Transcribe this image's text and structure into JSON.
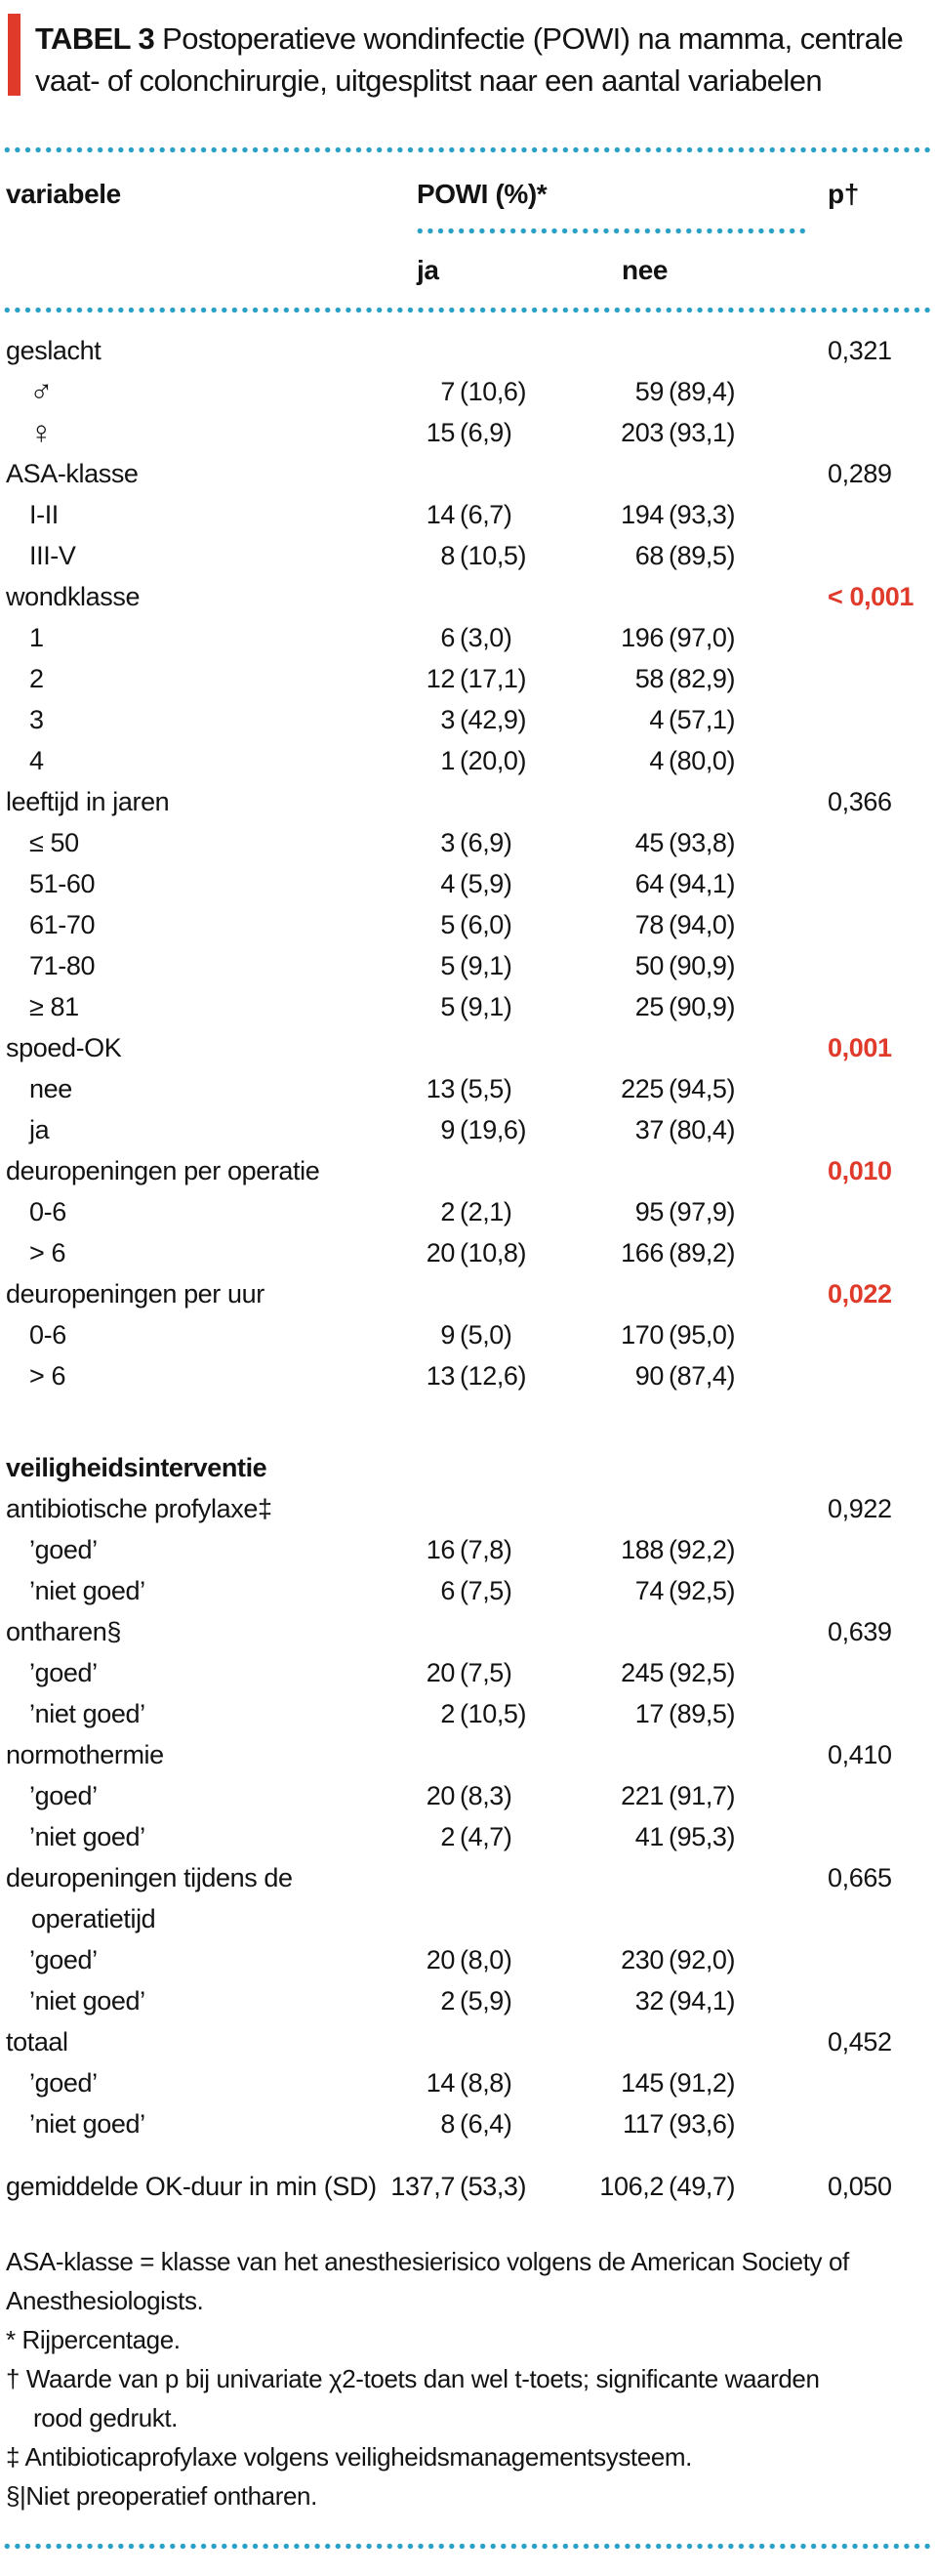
{
  "colors": {
    "accent_red": "#e03a2b",
    "dot_blue": "#29a0c6",
    "text": "#131313"
  },
  "title": {
    "label": "TABEL 3",
    "line1": "Postoperatieve wondinfectie (POWI) na mamma, centrale",
    "line2": "vaat- of colonchirurgie, uitgesplitst naar een aantal variabelen"
  },
  "table": {
    "col_variable": "variabele",
    "col_powi": "POWI (%)*",
    "col_p": "p†",
    "sub_ja": "ja",
    "sub_nee": "nee",
    "rows": [
      {
        "label": "geslacht",
        "p": "0,321"
      },
      {
        "label": "♂",
        "indent": 1,
        "big": true,
        "ja_n": "7",
        "ja_p": "(10,6)",
        "nee_n": "59",
        "nee_p": "(89,4)"
      },
      {
        "label": "♀",
        "indent": 1,
        "big": true,
        "ja_n": "15",
        "ja_p": "(6,9)",
        "nee_n": "203",
        "nee_p": "(93,1)"
      },
      {
        "label": "ASA-klasse",
        "p": "0,289"
      },
      {
        "label": "I-II",
        "indent": 1,
        "ja_n": "14",
        "ja_p": "(6,7)",
        "nee_n": "194",
        "nee_p": "(93,3)"
      },
      {
        "label": "III-V",
        "indent": 1,
        "ja_n": "8",
        "ja_p": "(10,5)",
        "nee_n": "68",
        "nee_p": "(89,5)"
      },
      {
        "label": "wondklasse",
        "p": "< 0,001",
        "sig": true
      },
      {
        "label": "1",
        "indent": 1,
        "ja_n": "6",
        "ja_p": "(3,0)",
        "nee_n": "196",
        "nee_p": "(97,0)"
      },
      {
        "label": "2",
        "indent": 1,
        "ja_n": "12",
        "ja_p": "(17,1)",
        "nee_n": "58",
        "nee_p": "(82,9)"
      },
      {
        "label": "3",
        "indent": 1,
        "ja_n": "3",
        "ja_p": "(42,9)",
        "nee_n": "4",
        "nee_p": "(57,1)"
      },
      {
        "label": "4",
        "indent": 1,
        "ja_n": "1",
        "ja_p": "(20,0)",
        "nee_n": "4",
        "nee_p": "(80,0)"
      },
      {
        "label": "leeftijd in jaren",
        "p": "0,366"
      },
      {
        "label": "≤ 50",
        "indent": 1,
        "ja_n": "3",
        "ja_p": "(6,9)",
        "nee_n": "45",
        "nee_p": "(93,8)"
      },
      {
        "label": "51-60",
        "indent": 1,
        "ja_n": "4",
        "ja_p": "(5,9)",
        "nee_n": "64",
        "nee_p": "(94,1)"
      },
      {
        "label": "61-70",
        "indent": 1,
        "ja_n": "5",
        "ja_p": "(6,0)",
        "nee_n": "78",
        "nee_p": "(94,0)"
      },
      {
        "label": "71-80",
        "indent": 1,
        "ja_n": "5",
        "ja_p": "(9,1)",
        "nee_n": "50",
        "nee_p": "(90,9)"
      },
      {
        "label": "≥ 81",
        "indent": 1,
        "ja_n": "5",
        "ja_p": "(9,1)",
        "nee_n": "25",
        "nee_p": "(90,9)"
      },
      {
        "label": "spoed-OK",
        "p": "0,001",
        "sig": true
      },
      {
        "label": "nee",
        "indent": 1,
        "ja_n": "13",
        "ja_p": "(5,5)",
        "nee_n": "225",
        "nee_p": "(94,5)"
      },
      {
        "label": "ja",
        "indent": 1,
        "ja_n": "9",
        "ja_p": "(19,6)",
        "nee_n": "37",
        "nee_p": "(80,4)"
      },
      {
        "label": "deuropeningen per operatie",
        "p": "0,010",
        "sig": true
      },
      {
        "label": "0-6",
        "indent": 1,
        "ja_n": "2",
        "ja_p": "(2,1)",
        "nee_n": "95",
        "nee_p": "(97,9)"
      },
      {
        "label": "> 6",
        "indent": 1,
        "ja_n": "20",
        "ja_p": "(10,8)",
        "nee_n": "166",
        "nee_p": "(89,2)"
      },
      {
        "label": "deuropeningen per uur",
        "p": "0,022",
        "sig": true
      },
      {
        "label": "0-6",
        "indent": 1,
        "ja_n": "9",
        "ja_p": "(5,0)",
        "nee_n": "170",
        "nee_p": "(95,0)"
      },
      {
        "label": "> 6",
        "indent": 1,
        "ja_n": "13",
        "ja_p": "(12,6)",
        "nee_n": "90",
        "nee_p": "(87,4)"
      },
      {
        "label": "veiligheidsinterventie",
        "bold": true,
        "gap": 52
      },
      {
        "label": "antibiotische profylaxe‡",
        "p": "0,922"
      },
      {
        "label": "’goed’",
        "indent": 1,
        "ja_n": "16",
        "ja_p": "(7,8)",
        "nee_n": "188",
        "nee_p": "(92,2)"
      },
      {
        "label": "’niet goed’",
        "indent": 1,
        "ja_n": "6",
        "ja_p": "(7,5)",
        "nee_n": "74",
        "nee_p": "(92,5)"
      },
      {
        "label": "ontharen§",
        "p": "0,639"
      },
      {
        "label": "’goed’",
        "indent": 1,
        "ja_n": "20",
        "ja_p": "(7,5)",
        "nee_n": "245",
        "nee_p": "(92,5)"
      },
      {
        "label": "’niet goed’",
        "indent": 1,
        "ja_n": "2",
        "ja_p": "(10,5)",
        "nee_n": "17",
        "nee_p": "(89,5)"
      },
      {
        "label": "normothermie",
        "p": "0,410"
      },
      {
        "label": "’goed’",
        "indent": 1,
        "ja_n": "20",
        "ja_p": "(8,3)",
        "nee_n": "221",
        "nee_p": "(91,7)"
      },
      {
        "label": "’niet goed’",
        "indent": 1,
        "ja_n": "2",
        "ja_p": "(4,7)",
        "nee_n": "41",
        "nee_p": "(95,3)"
      },
      {
        "label": "deuropeningen tijdens de",
        "label2": "operatietijd",
        "p": "0,665"
      },
      {
        "label": "’goed’",
        "indent": 1,
        "ja_n": "20",
        "ja_p": "(8,0)",
        "nee_n": "230",
        "nee_p": "(92,0)"
      },
      {
        "label": "’niet goed’",
        "indent": 1,
        "ja_n": "2",
        "ja_p": "(5,9)",
        "nee_n": "32",
        "nee_p": "(94,1)"
      },
      {
        "label": "totaal",
        "p": "0,452"
      },
      {
        "label": "’goed’",
        "indent": 1,
        "ja_n": "14",
        "ja_p": "(8,8)",
        "nee_n": "145",
        "nee_p": "(91,2)"
      },
      {
        "label": "’niet goed’",
        "indent": 1,
        "ja_n": "8",
        "ja_p": "(6,4)",
        "nee_n": "117",
        "nee_p": "(93,6)"
      },
      {
        "label": "gemiddelde OK-duur in min (SD)",
        "gap": 22,
        "ja_n": "137,7",
        "ja_p": "(53,3)",
        "nee_n": "106,2",
        "nee_p": "(49,7)",
        "p": "0,050"
      }
    ],
    "footnotes": [
      {
        "text": "ASA-klasse = klasse van het anesthesierisico volgens de American Society of"
      },
      {
        "text": "Anesthesiologists."
      },
      {
        "text": "* Rijpercentage."
      },
      {
        "text": "† Waarde van p bij univariate χ2-toets dan wel t-toets; significante waarden"
      },
      {
        "text": "rood gedrukt.",
        "indent": 1
      },
      {
        "text": "‡ Antibioticaprofylaxe volgens veiligheidsmanagementsysteem."
      },
      {
        "text": "§|Niet preoperatief ontharen."
      }
    ]
  }
}
